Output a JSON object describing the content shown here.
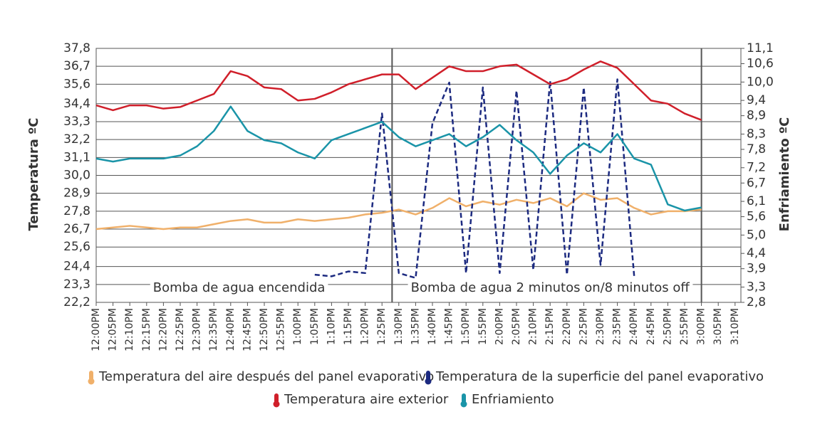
{
  "chart_data": {
    "type": "line",
    "categories": [
      "12:00PM",
      "12:05PM",
      "12:10PM",
      "12:15PM",
      "12:20PM",
      "12:25PM",
      "12:30PM",
      "12:35PM",
      "12:40PM",
      "12:45PM",
      "12:50PM",
      "12:55PM",
      "1:00PM",
      "1:05PM",
      "1:10PM",
      "1:15PM",
      "1:20PM",
      "1:25PM",
      "1:30PM",
      "1:35PM",
      "1:40PM",
      "1:45PM",
      "1:50PM",
      "1:55PM",
      "2:00PM",
      "2:05PM",
      "2:10PM",
      "2:15PM",
      "2:20PM",
      "2:25PM",
      "2:30PM",
      "2:35PM",
      "2:40PM",
      "2:45PM",
      "2:50PM",
      "2:55PM",
      "3:00PM",
      "3:05PM",
      "3:10PM"
    ],
    "y_label": "Temperatura ºC",
    "y2_label": "Enfriamiento ºC",
    "ylim": [
      22.2,
      37.8
    ],
    "yticks": [
      {
        "value": 22.2,
        "label": "22,2"
      },
      {
        "value": 23.3,
        "label": "23,3"
      },
      {
        "value": 24.4,
        "label": "24,4"
      },
      {
        "value": 25.6,
        "label": "25,6"
      },
      {
        "value": 26.7,
        "label": "26,7"
      },
      {
        "value": 27.8,
        "label": "27,8"
      },
      {
        "value": 28.9,
        "label": "28,9"
      },
      {
        "value": 30.0,
        "label": "30,0"
      },
      {
        "value": 31.1,
        "label": "31,1"
      },
      {
        "value": 32.2,
        "label": "32,2"
      },
      {
        "value": 33.3,
        "label": "33,3"
      },
      {
        "value": 34.4,
        "label": "34,4"
      },
      {
        "value": 35.6,
        "label": "35,6"
      },
      {
        "value": 36.7,
        "label": "36,7"
      },
      {
        "value": 37.8,
        "label": "37,8"
      }
    ],
    "y2lim": [
      2.8,
      11.1
    ],
    "y2ticks": [
      {
        "value": 2.8,
        "label": "2,8"
      },
      {
        "value": 3.3,
        "label": "3,3"
      },
      {
        "value": 3.9,
        "label": "3,9"
      },
      {
        "value": 4.4,
        "label": "4,4"
      },
      {
        "value": 5.0,
        "label": "5,0"
      },
      {
        "value": 5.6,
        "label": "5,6"
      },
      {
        "value": 6.1,
        "label": "6,1"
      },
      {
        "value": 6.7,
        "label": "6,7"
      },
      {
        "value": 7.2,
        "label": "7,2"
      },
      {
        "value": 7.8,
        "label": "7,8"
      },
      {
        "value": 8.3,
        "label": "8,3"
      },
      {
        "value": 8.9,
        "label": "8,9"
      },
      {
        "value": 9.4,
        "label": "9,4"
      },
      {
        "value": 10.0,
        "label": "10,0"
      },
      {
        "value": 10.6,
        "label": "10,6"
      },
      {
        "value": 11.1,
        "label": "11,1"
      }
    ],
    "grid": true,
    "annotations": [
      "Bomba de agua encendida",
      "Bomba de agua 2 minutos on/8 minutos off"
    ],
    "series": [
      {
        "name": "Temperatura del aire después del panel evaporativo",
        "color": "#f0b06a",
        "dashed": false,
        "values": [
          26.7,
          26.8,
          26.9,
          26.8,
          26.7,
          26.8,
          26.8,
          27.0,
          27.2,
          27.3,
          27.1,
          27.1,
          27.3,
          27.2,
          27.3,
          27.4,
          27.6,
          27.7,
          27.9,
          27.6,
          28.0,
          28.6,
          28.1,
          28.4,
          28.2,
          28.5,
          28.3,
          28.6,
          28.1,
          28.9,
          28.5,
          28.6,
          28.0,
          27.6,
          27.8,
          27.8,
          27.9,
          null,
          null
        ]
      },
      {
        "name": "Temperatura de la superficie del panel evaporativo",
        "color": "#1c2a80",
        "dashed": true,
        "values": [
          null,
          null,
          null,
          null,
          null,
          null,
          null,
          null,
          null,
          null,
          null,
          null,
          null,
          23.9,
          23.8,
          24.1,
          24.0,
          33.8,
          24.0,
          23.7,
          33.2,
          35.7,
          24.0,
          35.4,
          24.0,
          35.2,
          24.2,
          35.8,
          23.9,
          35.4,
          24.5,
          35.9,
          23.8,
          null,
          null,
          null,
          null,
          null,
          null
        ]
      },
      {
        "name": "Temperatura aire exterior",
        "color": "#d01f2a",
        "dashed": false,
        "values": [
          34.3,
          34.0,
          34.3,
          34.3,
          34.1,
          34.2,
          34.6,
          35.0,
          36.4,
          36.1,
          35.4,
          35.3,
          34.6,
          34.7,
          35.1,
          35.6,
          35.9,
          36.2,
          36.2,
          35.3,
          36.0,
          36.7,
          36.4,
          36.4,
          36.7,
          36.8,
          36.2,
          35.6,
          35.9,
          36.5,
          37.0,
          36.6,
          35.6,
          34.6,
          34.4,
          33.8,
          33.4,
          null,
          null
        ]
      },
      {
        "name": "Enfriamiento",
        "color": "#1a94a8",
        "dashed": false,
        "axis": "y2",
        "values": [
          7.5,
          7.4,
          7.5,
          7.5,
          7.5,
          7.6,
          7.9,
          8.4,
          9.2,
          8.4,
          8.1,
          8.0,
          7.7,
          7.5,
          8.1,
          8.3,
          8.5,
          8.7,
          8.2,
          7.9,
          8.1,
          8.3,
          7.9,
          8.2,
          8.6,
          8.1,
          7.7,
          7.0,
          7.6,
          8.0,
          7.7,
          8.3,
          7.5,
          7.3,
          6.0,
          5.8,
          5.9,
          null,
          null
        ]
      }
    ]
  }
}
